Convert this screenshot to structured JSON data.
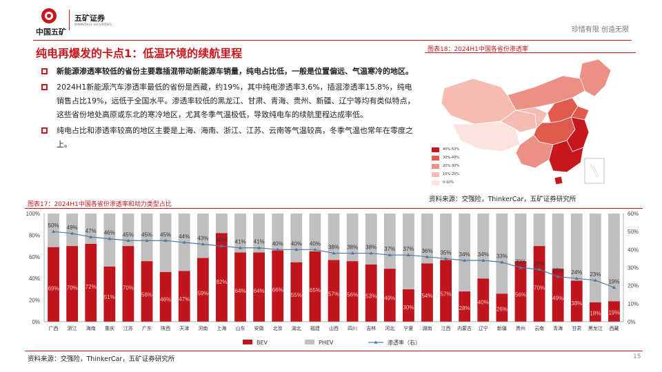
{
  "header": {
    "company": "中国五矿",
    "securities": "五矿证券",
    "securities_en": "MINMETALS SECURITIES",
    "slogan": "珍惜有限  创造无限"
  },
  "section_title": "纯电再爆发的卡点1：低温环境的续航里程",
  "bullets": [
    {
      "text": "新能源渗透率较低的省份主要靠插混带动新能源车销量，纯电占比低，一般是位置偏远、气温寒冷的地区。",
      "bold": true
    },
    {
      "text": "2024H1新能源汽车渗透率最低的省份是西藏，约19%，其中纯电渗透率3.6%，插混渗透率15.8%，纯电销售占比19%，远低于全国水平。渗透率较低的黑龙江、甘肃、青海、贵州、新疆、辽宁等均有类似特点，这些省份地处高原或东北的寒冷地区，尤其冬季气温极低，导致纯电车的续航里程达成率低。",
      "bold": false
    },
    {
      "text": "纯电占比和渗透率较高的地区主要是上海、海南、浙江、江苏、云南等气温较高，冬季气温也常年在零度之上。",
      "bold": false
    }
  ],
  "map": {
    "title": "图表18：2024H1中国各省份渗透率",
    "source": "资料来源：交强险，ThinkerCar，五矿证券研究所",
    "legend": [
      {
        "label": "40%-50%",
        "color": "#c8161d"
      },
      {
        "label": "30%-40%",
        "color": "#e05a4e"
      },
      {
        "label": "20%-30%",
        "color": "#ec8f84"
      },
      {
        "label": "10%-20%",
        "color": "#f4bcb3"
      },
      {
        "label": "0-10%",
        "color": "#fbe3de"
      }
    ]
  },
  "chart": {
    "title": "图表17：2024H1中国各省份渗透率和动力类型占比",
    "source": "资料来源：交强险，ThinkerCar，五矿证券研究所",
    "page_number": "15"
  },
  "chart_data": {
    "type": "bar",
    "stacked": true,
    "categories": [
      "广西",
      "浙江",
      "海南",
      "重庆",
      "江苏",
      "广东",
      "陕西",
      "天津",
      "河南",
      "上海",
      "山东",
      "安徽",
      "北京",
      "湖北",
      "福建",
      "山西",
      "四川",
      "吉林",
      "河北",
      "宁夏",
      "湖南",
      "江西",
      "内蒙古",
      "辽宁",
      "新疆",
      "贵州",
      "云南",
      "青海",
      "甘肃",
      "黑龙江",
      "西藏"
    ],
    "series": [
      {
        "name": "BEV",
        "type": "bar",
        "axis": "left",
        "color": "#c0151c",
        "values": [
          69,
          70,
          72,
          51,
          70,
          56,
          46,
          47,
          59,
          82,
          64,
          64,
          66,
          55,
          65,
          57,
          56,
          53,
          49,
          30,
          54,
          57,
          28,
          40,
          26,
          56,
          70,
          49,
          38,
          18,
          19
        ]
      },
      {
        "name": "PHEV",
        "type": "bar",
        "axis": "left",
        "color": "#bfbfbf",
        "values": [
          31,
          30,
          28,
          49,
          30,
          44,
          54,
          53,
          41,
          18,
          36,
          36,
          34,
          45,
          35,
          43,
          44,
          47,
          51,
          70,
          46,
          43,
          72,
          60,
          74,
          44,
          30,
          51,
          62,
          82,
          81
        ]
      },
      {
        "name": "渗透率（右）",
        "type": "line",
        "axis": "right",
        "color": "#4e79a7",
        "values": [
          50,
          49,
          47,
          46,
          45,
          45,
          45,
          44,
          43,
          42,
          41,
          41,
          40,
          40,
          40,
          38,
          38,
          38,
          37,
          37,
          36,
          35,
          34,
          34,
          33,
          30,
          29,
          25,
          24,
          23,
          19
        ]
      }
    ],
    "bev_labels": [
      "69%",
      "70%",
      "72%",
      "51%",
      "70%",
      "56%",
      "46%",
      "47%",
      "59%",
      "82%",
      "64%",
      "64%",
      "66%",
      "55%",
      "65%",
      "57%",
      "56%",
      "53%",
      "49%",
      "30%",
      "54%",
      "57%",
      "28%",
      "40%",
      "26%",
      "56%",
      "70%",
      "49%",
      "38%",
      "18%",
      "19%"
    ],
    "rate_labels": [
      "50%",
      "49%",
      "47%",
      "46%",
      "45%",
      "45%",
      "45%",
      "44%",
      "43%",
      "42%",
      "41%",
      "41%",
      "40%",
      "40%",
      "40%",
      "38%",
      "38%",
      "38%",
      "37%",
      "37%",
      "36%",
      "35%",
      "34%",
      "34%",
      "33%",
      "30%",
      "29%",
      "25%",
      "24%",
      "23%",
      "19%"
    ],
    "left_axis": {
      "ticks": [
        "0%",
        "20%",
        "40%",
        "60%",
        "80%",
        "100%"
      ],
      "min": 0,
      "max": 100
    },
    "right_axis": {
      "ticks": [
        "0%",
        "10%",
        "20%",
        "30%",
        "40%",
        "50%",
        "60%"
      ],
      "min": 0,
      "max": 60
    },
    "legend": [
      "BEV",
      "PHEV",
      "渗透率（右）"
    ],
    "grid": false
  }
}
